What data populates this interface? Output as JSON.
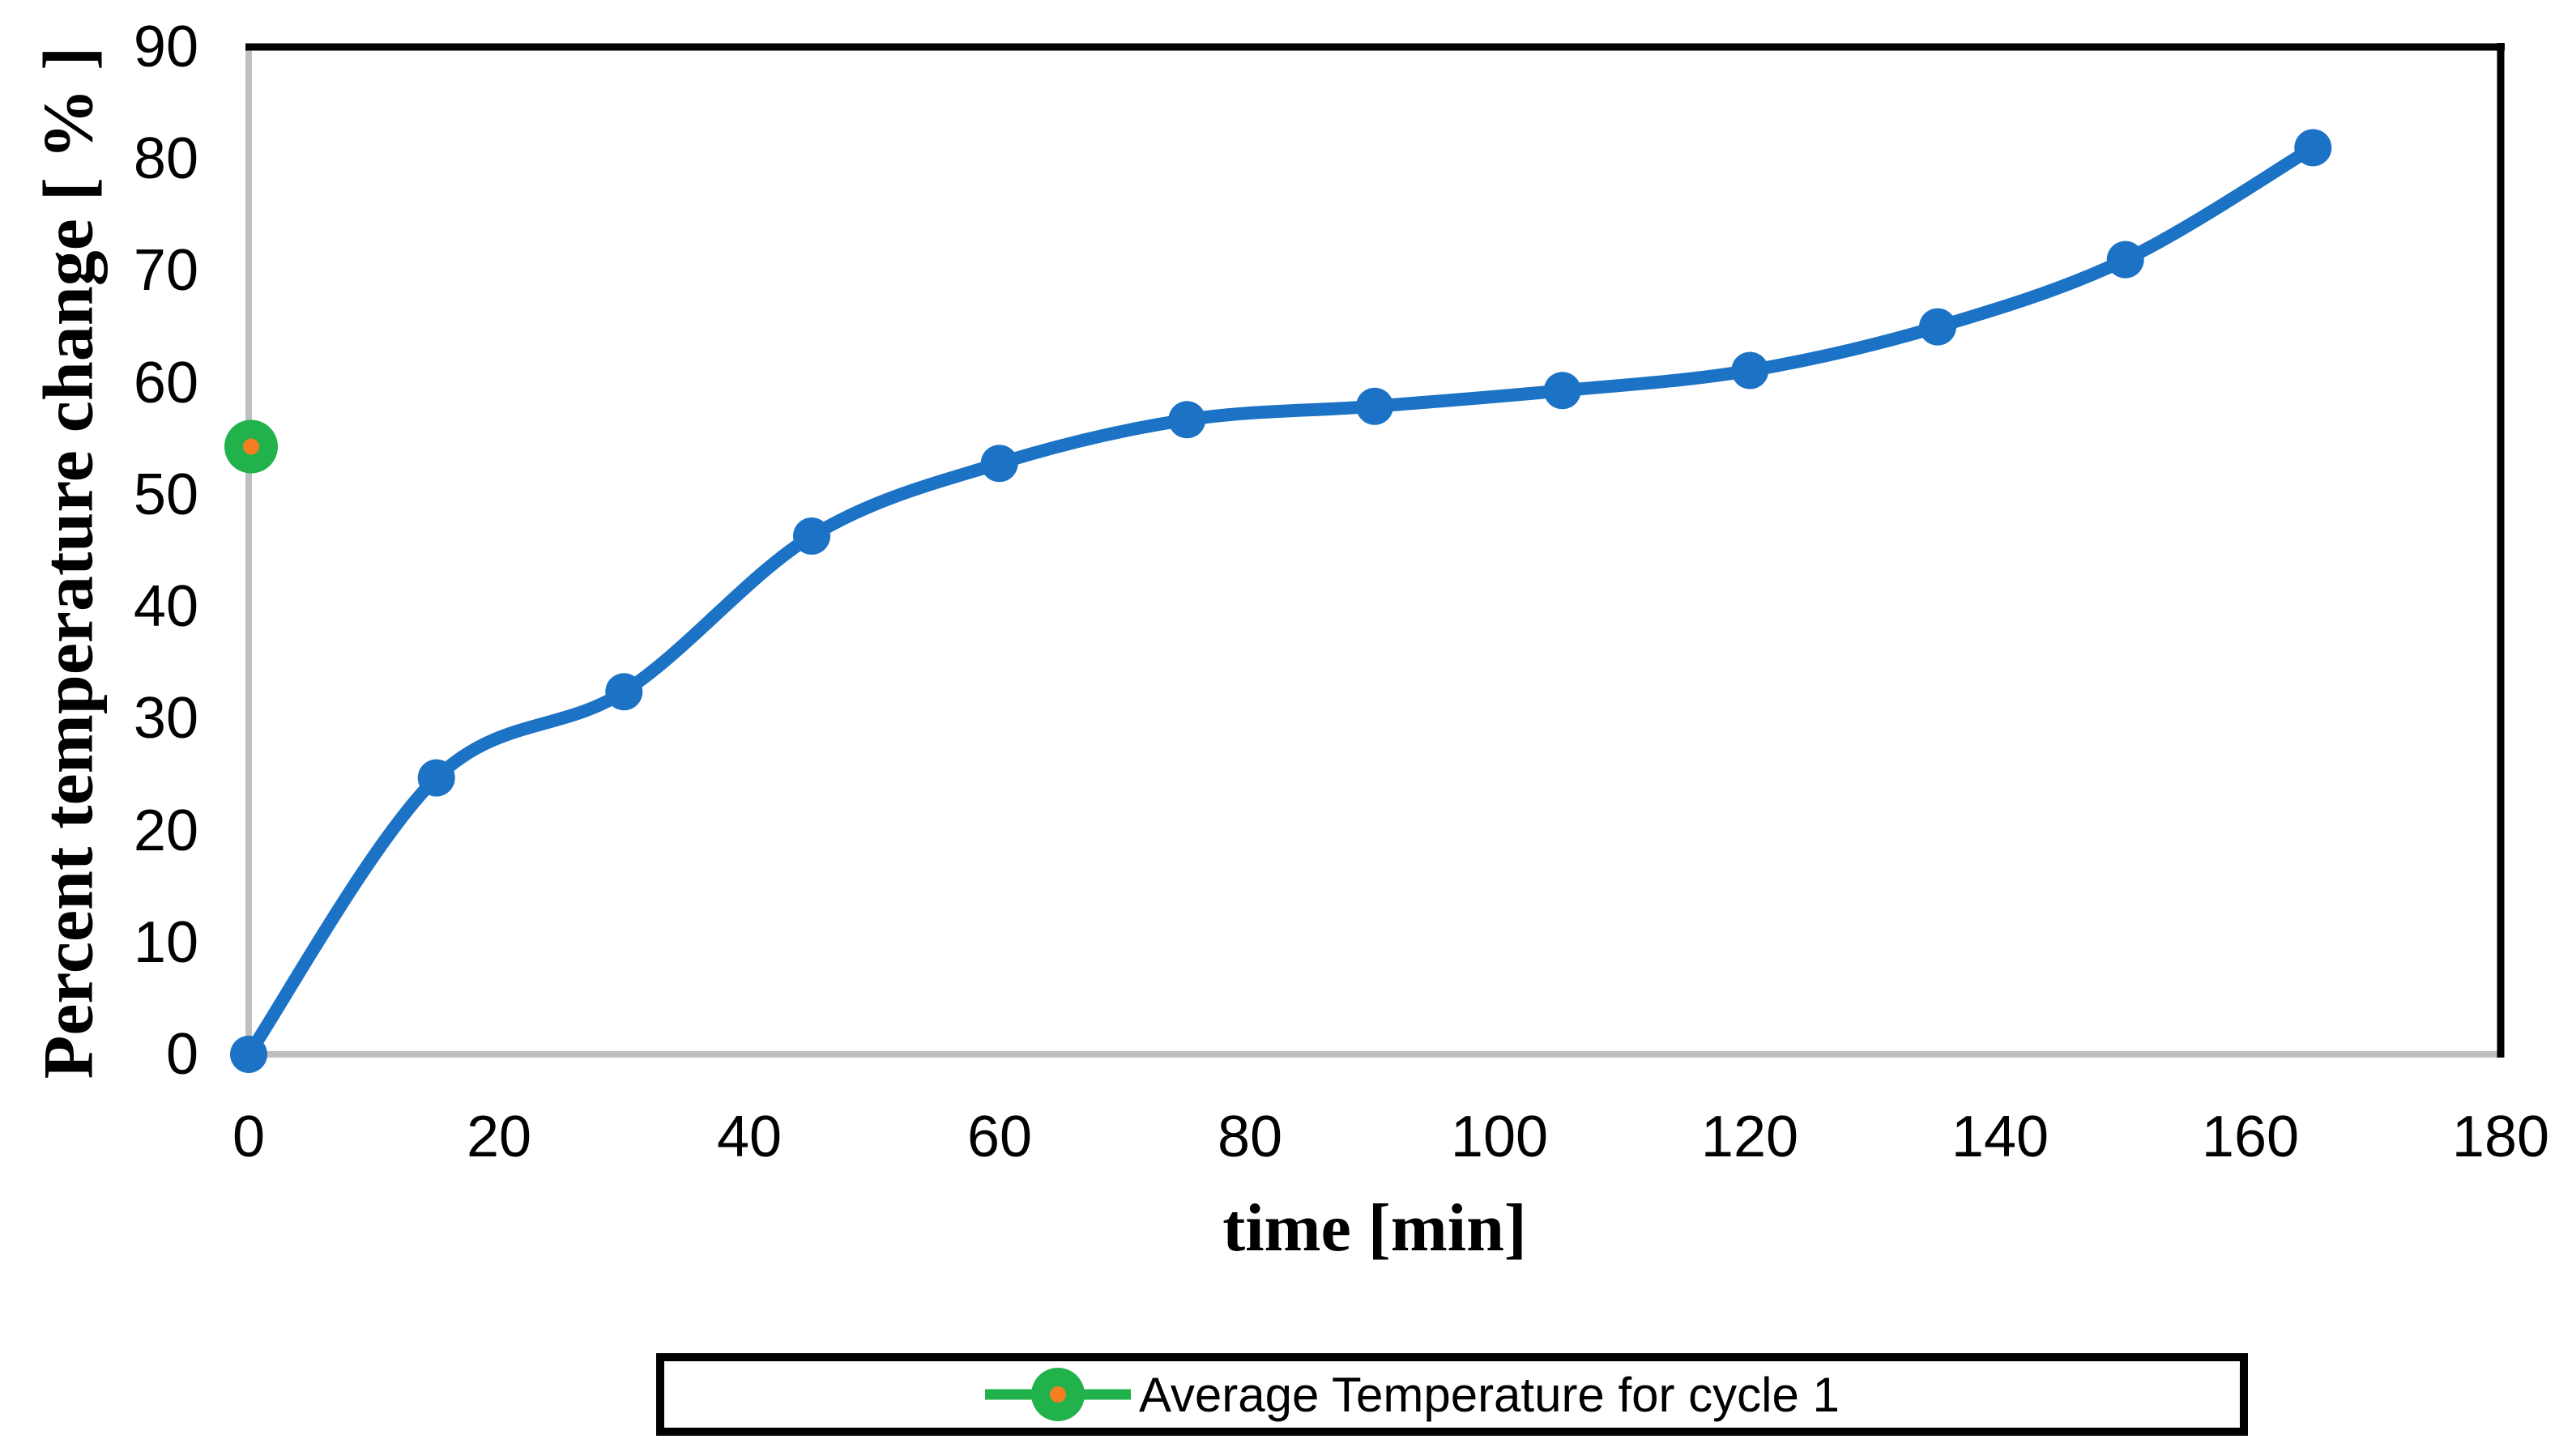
{
  "chart_data": {
    "type": "line",
    "title": "",
    "xlabel": "time [min]",
    "ylabel": "Percent temperature change [ % ]",
    "xlim": [
      0,
      180
    ],
    "ylim": [
      0,
      90
    ],
    "x_ticks": [
      0,
      20,
      40,
      60,
      80,
      100,
      120,
      140,
      160,
      180
    ],
    "y_ticks": [
      0,
      10,
      20,
      30,
      40,
      50,
      60,
      70,
      80,
      90
    ],
    "grid": false,
    "legend_position": "bottom-center",
    "series": [
      {
        "name": "",
        "x": [
          0,
          15,
          30,
          45,
          60,
          75,
          90,
          105,
          120,
          135,
          150,
          165
        ],
        "y": [
          0,
          24.7,
          32.4,
          46.3,
          52.8,
          56.7,
          57.9,
          59.3,
          61.1,
          65.0,
          71.0,
          81.0
        ],
        "color": "#1C72C4",
        "marker": "circle",
        "marker_radius": 23,
        "line_width": 16,
        "smooth": true
      },
      {
        "name": "Average Temperature for cycle 1",
        "x": [
          0
        ],
        "y": [
          54.3
        ],
        "color": "#22B24C",
        "marker": "circle-with-dot",
        "marker_radius": 33,
        "center_dot_color": "#F47E20",
        "center_dot_radius": 10,
        "line_width": 0,
        "smooth": false
      }
    ]
  },
  "legend": {
    "label": "Average Temperature for cycle 1",
    "marker_color": "#22B24C",
    "marker_center_color": "#F47E20"
  },
  "colors": {
    "axis_line": "#BFBFBF",
    "plot_border": "#000000",
    "background": "#FFFFFF",
    "tick_label": "#000000"
  }
}
